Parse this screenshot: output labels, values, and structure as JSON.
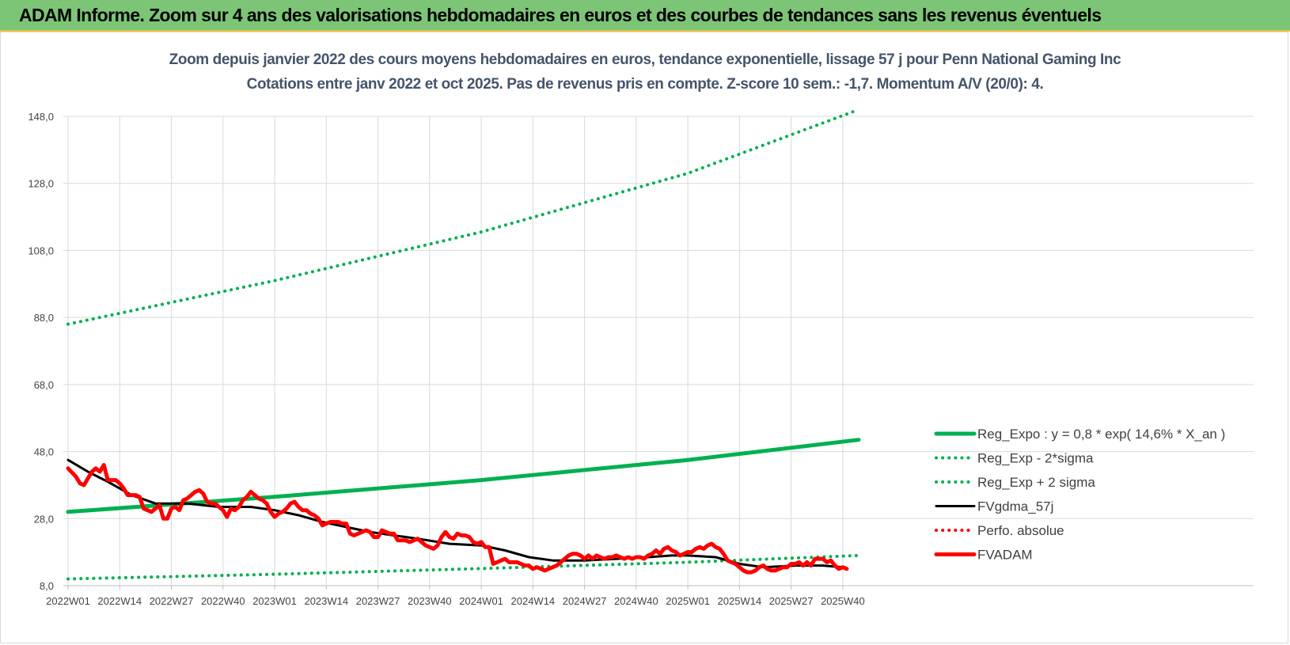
{
  "banner": {
    "title": "ADAM Informe. Zoom sur 4 ans des valorisations hebdomadaires en euros et des courbes de tendances sans les revenus éventuels"
  },
  "colors": {
    "banner_bg": "#7dc576",
    "trend": "#00b050",
    "smooth": "#000000",
    "price": "#ff0000",
    "grid": "#d9d9d9"
  },
  "chart_data": {
    "type": "line",
    "title": "Zoom depuis janvier 2022 des cours moyens hebdomadaires en euros, tendance exponentielle, lissage 57 j pour Penn National Gaming Inc",
    "subtitle": "Cotations entre janv 2022 et oct 2025. Pas de revenus pris en compte. Z-score 10 sem.: -1,7. Momentum A/V (20/0): 4.",
    "xlabel": "",
    "ylabel": "",
    "ylim": [
      8,
      148
    ],
    "yticks": [
      "148,0",
      "128,0",
      "108,0",
      "88,0",
      "68,0",
      "48,0",
      "28,0",
      "8,0"
    ],
    "ytick_values": [
      148,
      128,
      108,
      88,
      68,
      48,
      28,
      8
    ],
    "x_count": 196,
    "xticks": [
      {
        "i": 0,
        "label": "2022W01"
      },
      {
        "i": 13,
        "label": "2022W14"
      },
      {
        "i": 26,
        "label": "2022W27"
      },
      {
        "i": 39,
        "label": "2022W40"
      },
      {
        "i": 52,
        "label": "2023W01"
      },
      {
        "i": 65,
        "label": "2023W14"
      },
      {
        "i": 78,
        "label": "2023W27"
      },
      {
        "i": 91,
        "label": "2023W40"
      },
      {
        "i": 104,
        "label": "2024W01"
      },
      {
        "i": 117,
        "label": "2024W14"
      },
      {
        "i": 130,
        "label": "2024W27"
      },
      {
        "i": 143,
        "label": "2024W40"
      },
      {
        "i": 156,
        "label": "2025W01"
      },
      {
        "i": 169,
        "label": "2025W14"
      },
      {
        "i": 182,
        "label": "2025W27"
      },
      {
        "i": 195,
        "label": "2025W40"
      }
    ],
    "grid": true,
    "legend_position": "bottom-right",
    "series": [
      {
        "name": "Reg_Expo : y = 0,8 * exp( 14,6% * X_an )",
        "style": "solid-thick",
        "color": "#00b050",
        "anchors": [
          [
            0,
            30.0
          ],
          [
            52,
            34.5
          ],
          [
            104,
            39.5
          ],
          [
            156,
            45.5
          ],
          [
            199,
            51.5
          ]
        ]
      },
      {
        "name": "Reg_Exp - 2*sigma",
        "style": "dotted",
        "color": "#00b050",
        "anchors": [
          [
            0,
            10.0
          ],
          [
            52,
            11.4
          ],
          [
            104,
            13.1
          ],
          [
            156,
            15.0
          ],
          [
            199,
            17.0
          ]
        ]
      },
      {
        "name": "Reg_Exp + 2 sigma",
        "style": "dotted",
        "color": "#00b050",
        "anchors": [
          [
            0,
            86.0
          ],
          [
            52,
            99.0
          ],
          [
            104,
            113.5
          ],
          [
            156,
            131.0
          ],
          [
            199,
            150.0
          ]
        ]
      },
      {
        "name": "FVgdma_57j",
        "style": "solid",
        "color": "#000000",
        "anchors": [
          [
            0,
            45.5
          ],
          [
            5,
            42.0
          ],
          [
            10,
            39.0
          ],
          [
            16,
            35.0
          ],
          [
            22,
            32.5
          ],
          [
            30,
            32.5
          ],
          [
            38,
            31.5
          ],
          [
            46,
            31.5
          ],
          [
            52,
            30.5
          ],
          [
            58,
            29.0
          ],
          [
            64,
            27.0
          ],
          [
            70,
            25.5
          ],
          [
            76,
            24.0
          ],
          [
            82,
            23.0
          ],
          [
            88,
            22.0
          ],
          [
            96,
            20.5
          ],
          [
            104,
            20.0
          ],
          [
            110,
            18.5
          ],
          [
            116,
            16.5
          ],
          [
            122,
            15.5
          ],
          [
            130,
            15.5
          ],
          [
            138,
            16.0
          ],
          [
            146,
            16.5
          ],
          [
            152,
            17.0
          ],
          [
            156,
            17.0
          ],
          [
            163,
            16.5
          ],
          [
            169,
            14.5
          ],
          [
            175,
            13.5
          ],
          [
            183,
            14.0
          ],
          [
            190,
            14.0
          ],
          [
            195,
            13.5
          ]
        ]
      },
      {
        "name": "Perfo. absolue",
        "style": "dotted",
        "color": "#ff0000",
        "anchors": []
      },
      {
        "name": "FVADAM",
        "style": "solid-thick",
        "color": "#ff0000",
        "anchors": [
          [
            0,
            43.0
          ],
          [
            2,
            40.5
          ],
          [
            3,
            38.5
          ],
          [
            4,
            38.0
          ],
          [
            5,
            40.0
          ],
          [
            6,
            42.0
          ],
          [
            7,
            43.0
          ],
          [
            8,
            42.0
          ],
          [
            9,
            44.0
          ],
          [
            10,
            39.5
          ],
          [
            12,
            39.5
          ],
          [
            13,
            38.5
          ],
          [
            14,
            37.0
          ],
          [
            15,
            35.0
          ],
          [
            17,
            35.0
          ],
          [
            18,
            34.5
          ],
          [
            19,
            31.0
          ],
          [
            20,
            30.5
          ],
          [
            21,
            30.0
          ],
          [
            22,
            31.0
          ],
          [
            23,
            32.0
          ],
          [
            24,
            28.0
          ],
          [
            25,
            28.0
          ],
          [
            26,
            31.0
          ],
          [
            27,
            31.5
          ],
          [
            28,
            30.5
          ],
          [
            29,
            33.5
          ],
          [
            30,
            34.0
          ],
          [
            31,
            35.0
          ],
          [
            32,
            36.0
          ],
          [
            33,
            36.5
          ],
          [
            34,
            35.5
          ],
          [
            35,
            33.0
          ],
          [
            36,
            32.5
          ],
          [
            37,
            32.5
          ],
          [
            38,
            31.5
          ],
          [
            39,
            30.5
          ],
          [
            40,
            28.5
          ],
          [
            41,
            31.0
          ],
          [
            42,
            30.5
          ],
          [
            43,
            31.5
          ],
          [
            44,
            33.5
          ],
          [
            45,
            34.5
          ],
          [
            46,
            36.0
          ],
          [
            47,
            35.0
          ],
          [
            48,
            34.0
          ],
          [
            49,
            33.5
          ],
          [
            50,
            32.5
          ],
          [
            51,
            30.0
          ],
          [
            52,
            28.5
          ],
          [
            53,
            29.5
          ],
          [
            54,
            30.0
          ],
          [
            55,
            31.0
          ],
          [
            56,
            32.5
          ],
          [
            57,
            33.0
          ],
          [
            58,
            31.5
          ],
          [
            59,
            30.5
          ],
          [
            60,
            30.5
          ],
          [
            61,
            29.5
          ],
          [
            62,
            29.0
          ],
          [
            63,
            28.0
          ],
          [
            64,
            26.0
          ],
          [
            65,
            26.5
          ],
          [
            66,
            27.0
          ],
          [
            67,
            27.0
          ],
          [
            68,
            27.0
          ],
          [
            69,
            26.5
          ],
          [
            70,
            26.5
          ],
          [
            71,
            23.5
          ],
          [
            72,
            23.0
          ],
          [
            73,
            23.5
          ],
          [
            74,
            24.0
          ],
          [
            75,
            24.5
          ],
          [
            76,
            24.0
          ],
          [
            77,
            22.5
          ],
          [
            78,
            22.5
          ],
          [
            79,
            24.5
          ],
          [
            80,
            24.0
          ],
          [
            81,
            23.5
          ],
          [
            82,
            23.5
          ],
          [
            83,
            21.5
          ],
          [
            84,
            21.5
          ],
          [
            85,
            21.5
          ],
          [
            86,
            21.0
          ],
          [
            87,
            21.5
          ],
          [
            88,
            22.0
          ],
          [
            89,
            21.0
          ],
          [
            90,
            20.0
          ],
          [
            91,
            19.5
          ],
          [
            92,
            19.0
          ],
          [
            93,
            20.0
          ],
          [
            94,
            22.5
          ],
          [
            95,
            24.0
          ],
          [
            96,
            22.5
          ],
          [
            97,
            22.0
          ],
          [
            98,
            23.5
          ],
          [
            99,
            23.0
          ],
          [
            100,
            23.0
          ],
          [
            101,
            22.5
          ],
          [
            102,
            21.0
          ],
          [
            103,
            20.5
          ],
          [
            104,
            21.0
          ],
          [
            105,
            19.5
          ],
          [
            106,
            19.5
          ],
          [
            107,
            14.5
          ],
          [
            108,
            15.0
          ],
          [
            109,
            15.5
          ],
          [
            110,
            16.0
          ],
          [
            111,
            15.0
          ],
          [
            112,
            15.0
          ],
          [
            113,
            15.0
          ],
          [
            114,
            14.5
          ],
          [
            115,
            14.0
          ],
          [
            116,
            14.0
          ],
          [
            117,
            13.0
          ],
          [
            118,
            13.5
          ],
          [
            119,
            13.0
          ],
          [
            120,
            12.5
          ],
          [
            121,
            13.0
          ],
          [
            122,
            13.5
          ],
          [
            123,
            14.0
          ],
          [
            124,
            15.0
          ],
          [
            125,
            16.0
          ],
          [
            126,
            17.0
          ],
          [
            127,
            17.5
          ],
          [
            128,
            17.5
          ],
          [
            129,
            17.0
          ],
          [
            130,
            16.0
          ],
          [
            131,
            17.0
          ],
          [
            132,
            16.0
          ],
          [
            133,
            17.0
          ],
          [
            134,
            16.5
          ],
          [
            135,
            16.0
          ],
          [
            136,
            16.5
          ],
          [
            137,
            16.5
          ],
          [
            138,
            17.0
          ],
          [
            139,
            16.5
          ],
          [
            140,
            16.0
          ],
          [
            141,
            16.5
          ],
          [
            142,
            16.0
          ],
          [
            143,
            16.5
          ],
          [
            144,
            16.5
          ],
          [
            145,
            16.0
          ],
          [
            146,
            17.0
          ],
          [
            147,
            17.5
          ],
          [
            148,
            18.5
          ],
          [
            149,
            17.5
          ],
          [
            150,
            19.0
          ],
          [
            151,
            19.5
          ],
          [
            152,
            18.5
          ],
          [
            153,
            18.0
          ],
          [
            154,
            17.0
          ],
          [
            155,
            17.5
          ],
          [
            156,
            18.0
          ],
          [
            157,
            18.0
          ],
          [
            158,
            19.0
          ],
          [
            159,
            19.5
          ],
          [
            160,
            19.0
          ],
          [
            161,
            20.0
          ],
          [
            162,
            20.5
          ],
          [
            163,
            19.5
          ],
          [
            164,
            19.0
          ],
          [
            165,
            17.5
          ],
          [
            166,
            15.5
          ],
          [
            167,
            15.0
          ],
          [
            168,
            14.5
          ],
          [
            169,
            13.5
          ],
          [
            170,
            12.5
          ],
          [
            171,
            12.0
          ],
          [
            172,
            12.0
          ],
          [
            173,
            12.5
          ],
          [
            174,
            13.5
          ],
          [
            175,
            14.0
          ],
          [
            176,
            13.0
          ],
          [
            177,
            12.5
          ],
          [
            178,
            12.5
          ],
          [
            179,
            13.0
          ],
          [
            180,
            13.5
          ],
          [
            181,
            13.5
          ],
          [
            182,
            14.5
          ],
          [
            183,
            14.5
          ],
          [
            184,
            15.0
          ],
          [
            185,
            14.0
          ],
          [
            186,
            15.0
          ],
          [
            187,
            14.0
          ],
          [
            188,
            16.0
          ],
          [
            189,
            16.0
          ],
          [
            190,
            16.0
          ],
          [
            191,
            15.0
          ],
          [
            192,
            15.5
          ],
          [
            193,
            14.0
          ],
          [
            194,
            13.0
          ],
          [
            195,
            13.5
          ],
          [
            196,
            13.0
          ]
        ]
      }
    ]
  }
}
